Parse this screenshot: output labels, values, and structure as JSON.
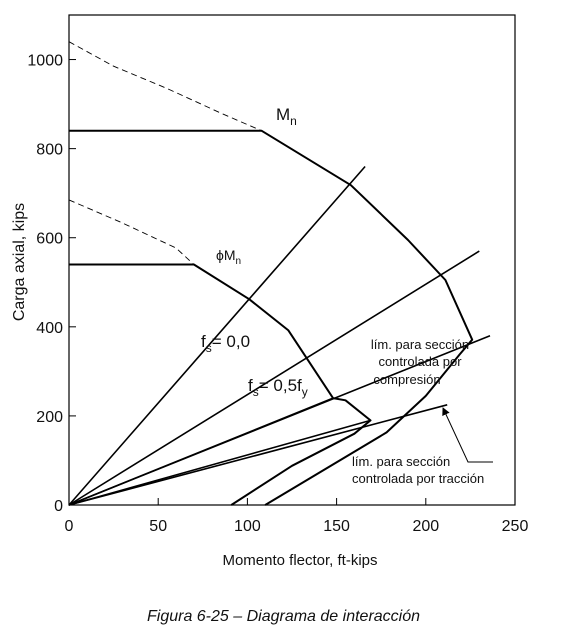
{
  "caption": "Figura 6-25 – Diagrama de interacción",
  "chart_data": {
    "type": "line",
    "xlabel": "Momento flector, ft-kips",
    "ylabel": "Carga axial, kips",
    "xlim": [
      0,
      250
    ],
    "ylim": [
      0,
      1100
    ],
    "xticks": [
      0,
      50,
      100,
      150,
      200,
      250
    ],
    "yticks": [
      0,
      200,
      400,
      600,
      800,
      1000
    ],
    "grid": false,
    "series": [
      {
        "name": "M_n",
        "style": "solid",
        "points": [
          [
            0,
            840
          ],
          [
            108,
            840
          ],
          [
            158,
            718
          ],
          [
            190,
            595
          ],
          [
            211,
            505
          ],
          [
            226,
            371
          ],
          [
            219,
            338
          ],
          [
            200,
            245
          ],
          [
            178,
            163
          ],
          [
            110,
            0
          ]
        ]
      },
      {
        "name": "M_n_dashed",
        "style": "dashed",
        "points": [
          [
            0,
            1040
          ],
          [
            25,
            985
          ],
          [
            55,
            935
          ],
          [
            85,
            880
          ],
          [
            108,
            840
          ]
        ]
      },
      {
        "name": "phi_M_n",
        "style": "solid",
        "points": [
          [
            0,
            540
          ],
          [
            70,
            540
          ],
          [
            101,
            462
          ],
          [
            123,
            392
          ],
          [
            148,
            240
          ],
          [
            155,
            235
          ],
          [
            169,
            190
          ],
          [
            160,
            160
          ],
          [
            125,
            88
          ],
          [
            91,
            0
          ]
        ]
      },
      {
        "name": "phi_M_n_dashed",
        "style": "dashed",
        "points": [
          [
            0,
            685
          ],
          [
            30,
            633
          ],
          [
            60,
            577
          ],
          [
            70,
            540
          ]
        ]
      },
      {
        "name": "fs_0",
        "style": "solid",
        "points": [
          [
            0,
            0
          ],
          [
            166,
            760
          ]
        ]
      },
      {
        "name": "fs_05fy",
        "style": "solid",
        "points": [
          [
            0,
            0
          ],
          [
            230,
            570
          ]
        ]
      },
      {
        "name": "comp_limit",
        "style": "solid",
        "points": [
          [
            0,
            0
          ],
          [
            236,
            380
          ]
        ]
      },
      {
        "name": "tension_limit",
        "style": "solid",
        "points": [
          [
            0,
            0
          ],
          [
            212,
            225
          ]
        ]
      },
      {
        "name": "phi_comp",
        "style": "solid",
        "points": [
          [
            0,
            0
          ],
          [
            148,
            240
          ]
        ]
      },
      {
        "name": "phi_tension",
        "style": "solid",
        "points": [
          [
            0,
            0
          ],
          [
            169,
            190
          ]
        ]
      }
    ],
    "labels": {
      "mn": {
        "main": "M",
        "sub": "n"
      },
      "phimn": {
        "main": "ϕM",
        "sub": "n"
      },
      "fs0": {
        "main": "f",
        "sub": "s",
        "rest": "= 0,0"
      },
      "fs05": {
        "main": "f",
        "sub": "s",
        "rest": "= 0,5f",
        "sub2": "y"
      }
    },
    "annotations": {
      "compression": [
        "lím. para sección",
        "controlada por",
        "compresión"
      ],
      "tension": [
        "lím. para sección",
        "controlada por tracción"
      ]
    }
  }
}
